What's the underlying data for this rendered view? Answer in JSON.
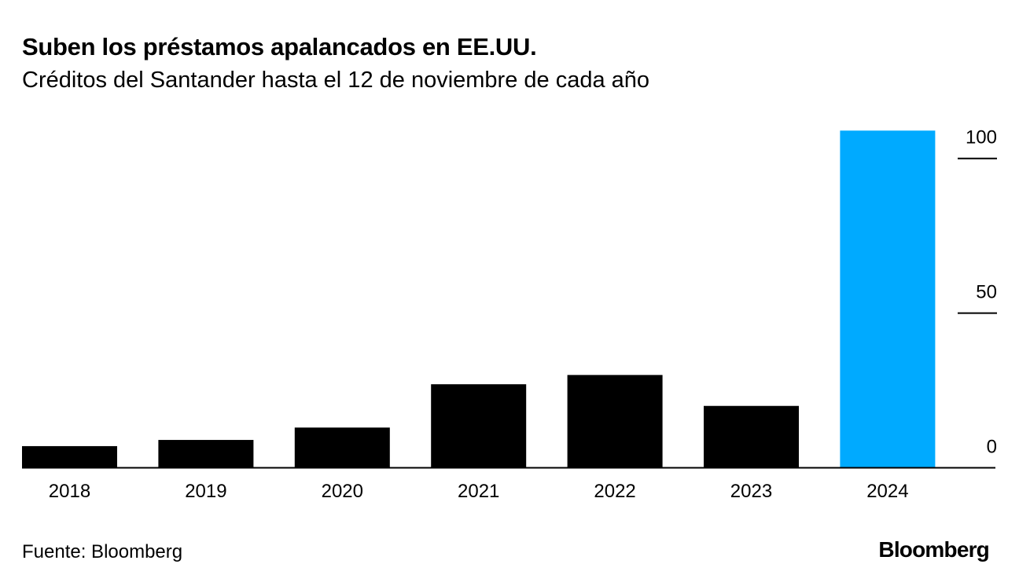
{
  "title": "Suben los préstamos apalancados en EE.UU.",
  "subtitle": "Créditos del Santander hasta el 12 de noviembre de cada año",
  "source": "Fuente: Bloomberg",
  "logo": "Bloomberg",
  "chart_data": {
    "type": "bar",
    "title": "Suben los préstamos apalancados en EE.UU.",
    "subtitle": "Créditos del Santander hasta el 12 de noviembre de cada año",
    "categories": [
      "2018",
      "2019",
      "2020",
      "2021",
      "2022",
      "2023",
      "2024"
    ],
    "values": [
      7,
      9,
      13,
      27,
      30,
      20,
      109
    ],
    "colors": [
      "#000000",
      "#000000",
      "#000000",
      "#000000",
      "#000000",
      "#000000",
      "#00aaff"
    ],
    "ylim": [
      0,
      100
    ],
    "yticks": [
      0,
      50,
      100
    ],
    "y_axis_position": "right",
    "grid": false,
    "xlabel": "",
    "ylabel": ""
  }
}
